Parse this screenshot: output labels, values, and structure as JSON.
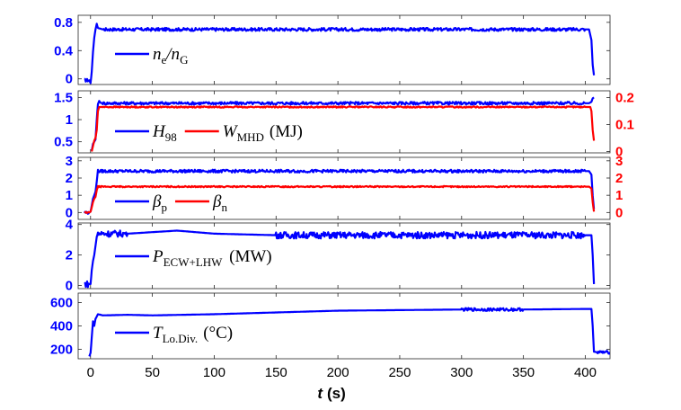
{
  "chart_data": [
    {
      "type": "line",
      "panel": 1,
      "ylim": [
        -0.08,
        0.9
      ],
      "yticks": [
        "0",
        "0.4",
        "0.8"
      ],
      "ytick_values": [
        0,
        0.4,
        0.8
      ],
      "series": [
        {
          "name_main": "n",
          "name_sub": "e",
          "name_suffix": "/n",
          "name_sub2": "G",
          "color": "#0000ff",
          "x": [
            -5,
            -1,
            0,
            1,
            2,
            3,
            4,
            5,
            6,
            10,
            50,
            100,
            200,
            300,
            400,
            403,
            405,
            406,
            407
          ],
          "y": [
            -0.02,
            -0.02,
            -0.06,
            0.1,
            0.38,
            0.58,
            0.7,
            0.78,
            0.72,
            0.7,
            0.7,
            0.7,
            0.7,
            0.7,
            0.7,
            0.7,
            0.55,
            0.2,
            0.05
          ]
        }
      ]
    },
    {
      "type": "line",
      "panel": 2,
      "ylim": [
        0.25,
        1.65
      ],
      "yticks": [
        "0.5",
        "1",
        "1.5"
      ],
      "ytick_values": [
        0.5,
        1,
        1.5
      ],
      "ylim_right": [
        -0.005,
        0.225
      ],
      "yticks_right": [
        "0",
        "0.1",
        "0.2"
      ],
      "ytick_values_right": [
        0,
        0.1,
        0.2
      ],
      "unit": "(MJ)",
      "series": [
        {
          "name_main": "H",
          "name_sub": "98",
          "color": "#0000ff",
          "axis": "left",
          "x": [
            1,
            2,
            3,
            4,
            5,
            6,
            7,
            8,
            10,
            50,
            100,
            200,
            300,
            400,
            403,
            405,
            406,
            407
          ],
          "y": [
            0.3,
            0.45,
            0.5,
            0.55,
            1.0,
            1.35,
            1.42,
            1.38,
            1.37,
            1.37,
            1.37,
            1.37,
            1.37,
            1.37,
            1.37,
            1.4,
            1.48,
            1.5
          ]
        },
        {
          "name_main": "W",
          "name_sub": "MHD",
          "color": "#ff0000",
          "axis": "right",
          "x": [
            1,
            2,
            3,
            4,
            5,
            6,
            7,
            8,
            10,
            50,
            100,
            200,
            300,
            400,
            403,
            404,
            405,
            406,
            407
          ],
          "y": [
            0.0,
            0.02,
            0.04,
            0.05,
            0.08,
            0.15,
            0.165,
            0.165,
            0.165,
            0.165,
            0.165,
            0.165,
            0.165,
            0.165,
            0.165,
            0.165,
            0.15,
            0.08,
            0.04
          ]
        }
      ]
    },
    {
      "type": "line",
      "panel": 3,
      "ylim": [
        -0.4,
        3.2
      ],
      "yticks": [
        "0",
        "1",
        "2",
        "3"
      ],
      "ytick_values": [
        0,
        1,
        2,
        3
      ],
      "ylim_right": [
        -0.4,
        3.2
      ],
      "yticks_right": [
        "0",
        "1",
        "2",
        "3"
      ],
      "ytick_values_right": [
        0,
        1,
        2,
        3
      ],
      "series": [
        {
          "name_main": "β",
          "name_sub": "p",
          "color": "#0000ff",
          "axis": "left",
          "x": [
            -5,
            -1,
            0,
            1,
            2,
            3,
            4,
            5,
            6,
            10,
            50,
            100,
            200,
            300,
            400,
            403,
            405,
            406,
            407
          ],
          "y": [
            0.0,
            0.0,
            0.05,
            0.4,
            0.8,
            1.0,
            1.2,
            1.8,
            2.4,
            2.4,
            2.4,
            2.4,
            2.4,
            2.4,
            2.4,
            2.4,
            2.2,
            1.0,
            0.2
          ]
        },
        {
          "name_main": "β",
          "name_sub": "n",
          "color": "#ff0000",
          "axis": "right",
          "x": [
            -5,
            -1,
            0,
            1,
            2,
            3,
            4,
            5,
            6,
            10,
            50,
            100,
            200,
            300,
            400,
            403,
            405,
            406,
            407
          ],
          "y": [
            0.0,
            0.0,
            0.05,
            0.3,
            0.6,
            0.8,
            0.9,
            1.3,
            1.5,
            1.5,
            1.5,
            1.5,
            1.5,
            1.5,
            1.5,
            1.5,
            1.4,
            0.6,
            0.05
          ]
        }
      ]
    },
    {
      "type": "line",
      "panel": 4,
      "ylim": [
        -0.2,
        4.1
      ],
      "yticks": [
        "0",
        "2",
        "4"
      ],
      "ytick_values": [
        0,
        2,
        4
      ],
      "unit": "(MW)",
      "series": [
        {
          "name_main": "P",
          "name_sub": "ECW+LHW",
          "color": "#0000ff",
          "x": [
            -5,
            -1,
            0,
            1,
            2,
            3,
            4,
            5,
            6,
            10,
            30,
            50,
            70,
            100,
            150,
            200,
            250,
            300,
            350,
            400,
            403,
            405,
            406,
            407
          ],
          "y": [
            0.1,
            0.1,
            0.1,
            1.0,
            1.6,
            2.0,
            2.6,
            3.2,
            3.4,
            3.4,
            3.4,
            3.5,
            3.6,
            3.4,
            3.3,
            3.3,
            3.3,
            3.3,
            3.3,
            3.3,
            3.3,
            3.3,
            2.0,
            0.1
          ]
        }
      ]
    },
    {
      "type": "line",
      "panel": 5,
      "ylim": [
        120,
        680
      ],
      "yticks": [
        "200",
        "400",
        "600"
      ],
      "ytick_values": [
        200,
        400,
        600
      ],
      "unit": "(°C)",
      "series": [
        {
          "name_main": "T",
          "name_sub": "Lo.Div.",
          "color": "#0000ff",
          "x": [
            -1,
            0,
            1,
            2,
            3,
            4,
            5,
            6,
            10,
            30,
            50,
            100,
            150,
            200,
            250,
            300,
            350,
            400,
            403,
            405,
            406,
            407,
            410,
            420
          ],
          "y": [
            140,
            170,
            300,
            440,
            400,
            460,
            480,
            500,
            490,
            495,
            490,
            500,
            515,
            530,
            535,
            540,
            540,
            545,
            545,
            545,
            400,
            180,
            175,
            175
          ]
        }
      ]
    }
  ],
  "xaxis": {
    "xlim": [
      -10,
      420
    ],
    "ticks": [
      "0",
      "50",
      "100",
      "150",
      "200",
      "250",
      "300",
      "350",
      "400"
    ],
    "tick_values": [
      0,
      50,
      100,
      150,
      200,
      250,
      300,
      350,
      400
    ],
    "label_t": "t",
    "label_unit": "(s)"
  }
}
